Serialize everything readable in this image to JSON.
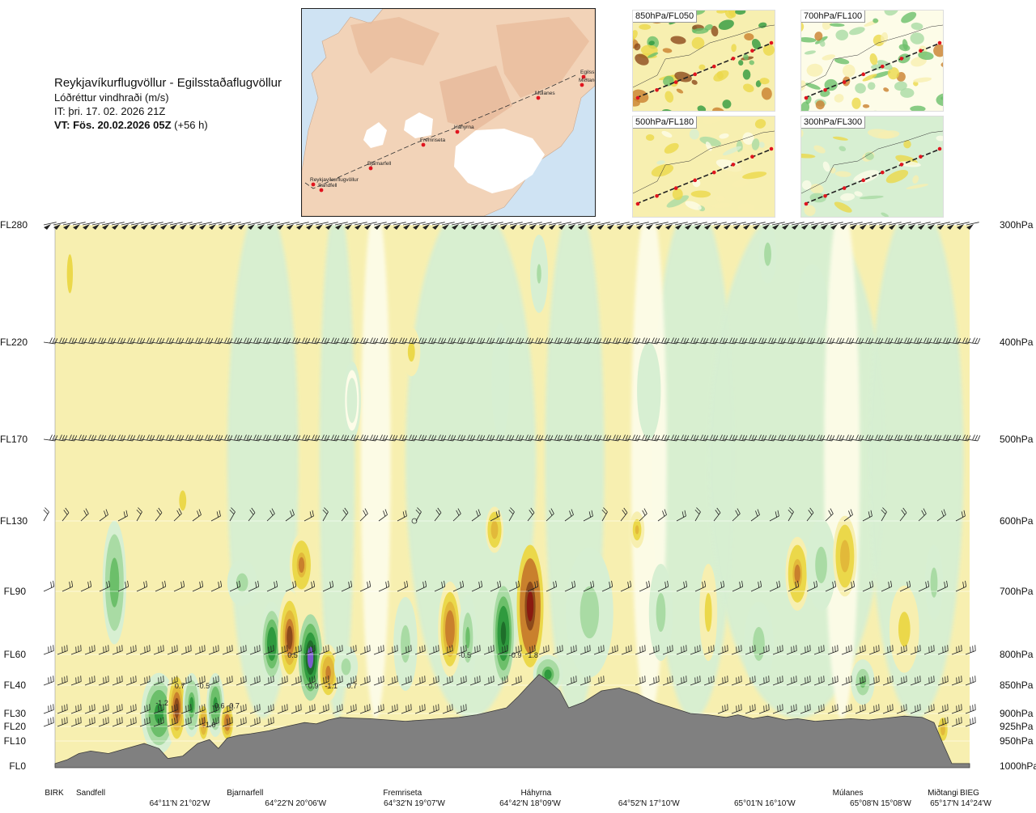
{
  "header": {
    "route_title": "Reykjavíkurflugvöllur - Egilsstaðaflugvöllur",
    "parameter": "Lóðréttur vindhraði (m/s)",
    "issue_time": "IT: þri. 17. 02. 2026 21Z",
    "valid_time_bold": "VT: Fös. 20.02.2026 05Z",
    "valid_time_offset": "(+56 h)"
  },
  "route_map": {
    "waypoints": [
      {
        "name": "Reykjavíkurflugvöllur"
      },
      {
        "name": "Sandfell"
      },
      {
        "name": "Bjarnarfell"
      },
      {
        "name": "Fremriseta"
      },
      {
        "name": "Háhyrna"
      },
      {
        "name": "Múlanes"
      },
      {
        "name": "Egilss"
      },
      {
        "name": "Miðtangi"
      }
    ],
    "colors": {
      "sea": "#cfe3f3",
      "land": "#f2d3b8",
      "glacier": "#ffffff",
      "route": "#333333",
      "waypoint": "#e0141e"
    }
  },
  "level_maps": [
    {
      "label": "850hPa/FL050"
    },
    {
      "label": "700hPa/FL100"
    },
    {
      "label": "500hPa/FL180"
    },
    {
      "label": "300hPa/FL300"
    }
  ],
  "chart_data": {
    "type": "heatmap",
    "title": "Lóðréttur vindhraði (m/s)",
    "x_axis": {
      "waypoints": [
        {
          "name": "BIRK",
          "km": 0
        },
        {
          "name": "Sandfell",
          "km": 12
        },
        {
          "name": "Bjarnarfell",
          "km": 64
        },
        {
          "name": "Fremriseta",
          "km": 117
        },
        {
          "name": "Háhyrna",
          "km": 162
        },
        {
          "name": "Múlanes",
          "km": 267
        },
        {
          "name": "Miðtangi",
          "km": 299
        },
        {
          "name": "BIEG",
          "km": 308
        }
      ],
      "coordinates": [
        {
          "label": "64°11'N 21°02'W",
          "km": 42
        },
        {
          "label": "64°22'N 20°06'W",
          "km": 81
        },
        {
          "label": "64°32'N 19°07'W",
          "km": 121
        },
        {
          "label": "64°42'N 18°09'W",
          "km": 160
        },
        {
          "label": "64°52'N 17°10'W",
          "km": 200
        },
        {
          "label": "65°01'N 16°10'W",
          "km": 239
        },
        {
          "label": "65°08'N 15°08'W",
          "km": 278
        },
        {
          "label": "65°17'N 14°24'W",
          "km": 305
        }
      ],
      "range": [
        0,
        308
      ]
    },
    "y_axis": {
      "levels": [
        {
          "fl": "FL0",
          "hpa": "1000hPa",
          "ft": 0
        },
        {
          "fl": "FL10",
          "hpa": "950hPa",
          "ft": 1000
        },
        {
          "fl": "FL20",
          "hpa": "925hPa",
          "ft": 2000
        },
        {
          "fl": "FL30",
          "hpa": "900hPa",
          "ft": 3000
        },
        {
          "fl": "FL40",
          "hpa": "850hPa",
          "ft": 4000
        },
        {
          "fl": "FL60",
          "hpa": "800hPa",
          "ft": 6000
        },
        {
          "fl": "FL90",
          "hpa": "700hPa",
          "ft": 9000
        },
        {
          "fl": "FL130",
          "hpa": "600hPa",
          "ft": 13000
        },
        {
          "fl": "FL170",
          "hpa": "500hPa",
          "ft": 17000
        },
        {
          "fl": "FL220",
          "hpa": "400hPa",
          "ft": 22000
        },
        {
          "fl": "FL280",
          "hpa": "300hPa",
          "ft": 28000
        }
      ]
    },
    "color_scale": [
      {
        "max": -1.2,
        "color": "#7b5ccd"
      },
      {
        "max": -0.9,
        "color": "#1e6e2a"
      },
      {
        "max": -0.6,
        "color": "#2f9a3e"
      },
      {
        "max": -0.4,
        "color": "#6cbf6a"
      },
      {
        "max": -0.2,
        "color": "#a9dba4"
      },
      {
        "max": -0.05,
        "color": "#d7efd2"
      },
      {
        "max": 0.05,
        "color": "#fdfce8"
      },
      {
        "max": 0.2,
        "color": "#f7efb0"
      },
      {
        "max": 0.4,
        "color": "#ebd84a"
      },
      {
        "max": 0.6,
        "color": "#e2b93a"
      },
      {
        "max": 0.9,
        "color": "#c9802d"
      },
      {
        "max": 1.2,
        "color": "#8c4a1b"
      },
      {
        "max": 99,
        "color": "#8a1a10"
      }
    ],
    "terrain_color": "#808080",
    "terrain_profile": [
      {
        "km": 0,
        "ft": 100
      },
      {
        "km": 4,
        "ft": 250
      },
      {
        "km": 8,
        "ft": 500
      },
      {
        "km": 12,
        "ft": 600
      },
      {
        "km": 18,
        "ft": 500
      },
      {
        "km": 24,
        "ft": 700
      },
      {
        "km": 30,
        "ft": 900
      },
      {
        "km": 35,
        "ft": 700
      },
      {
        "km": 38,
        "ft": 300
      },
      {
        "km": 43,
        "ft": 400
      },
      {
        "km": 48,
        "ft": 900
      },
      {
        "km": 52,
        "ft": 1100
      },
      {
        "km": 55,
        "ft": 700
      },
      {
        "km": 58,
        "ft": 1200
      },
      {
        "km": 62,
        "ft": 1400
      },
      {
        "km": 66,
        "ft": 1500
      },
      {
        "km": 72,
        "ft": 1700
      },
      {
        "km": 78,
        "ft": 2000
      },
      {
        "km": 84,
        "ft": 2300
      },
      {
        "km": 88,
        "ft": 2200
      },
      {
        "km": 92,
        "ft": 2500
      },
      {
        "km": 96,
        "ft": 2700
      },
      {
        "km": 100,
        "ft": 2650
      },
      {
        "km": 106,
        "ft": 2600
      },
      {
        "km": 112,
        "ft": 2500
      },
      {
        "km": 118,
        "ft": 2400
      },
      {
        "km": 124,
        "ft": 2500
      },
      {
        "km": 130,
        "ft": 2600
      },
      {
        "km": 136,
        "ft": 2700
      },
      {
        "km": 142,
        "ft": 2900
      },
      {
        "km": 148,
        "ft": 3100
      },
      {
        "km": 152,
        "ft": 3200
      },
      {
        "km": 156,
        "ft": 3600
      },
      {
        "km": 160,
        "ft": 4100
      },
      {
        "km": 163,
        "ft": 4700
      },
      {
        "km": 166,
        "ft": 4300
      },
      {
        "km": 170,
        "ft": 3800
      },
      {
        "km": 173,
        "ft": 3200
      },
      {
        "km": 178,
        "ft": 3400
      },
      {
        "km": 184,
        "ft": 3800
      },
      {
        "km": 190,
        "ft": 3900
      },
      {
        "km": 196,
        "ft": 3700
      },
      {
        "km": 202,
        "ft": 3400
      },
      {
        "km": 208,
        "ft": 3200
      },
      {
        "km": 214,
        "ft": 3000
      },
      {
        "km": 220,
        "ft": 2900
      },
      {
        "km": 226,
        "ft": 2700
      },
      {
        "km": 230,
        "ft": 2900
      },
      {
        "km": 235,
        "ft": 2600
      },
      {
        "km": 240,
        "ft": 2800
      },
      {
        "km": 246,
        "ft": 2500
      },
      {
        "km": 250,
        "ft": 2600
      },
      {
        "km": 256,
        "ft": 2400
      },
      {
        "km": 262,
        "ft": 2500
      },
      {
        "km": 268,
        "ft": 2600
      },
      {
        "km": 274,
        "ft": 2500
      },
      {
        "km": 280,
        "ft": 2650
      },
      {
        "km": 286,
        "ft": 2800
      },
      {
        "km": 292,
        "ft": 2700
      },
      {
        "km": 296,
        "ft": 2300
      },
      {
        "km": 299,
        "ft": 900
      },
      {
        "km": 302,
        "ft": 100
      },
      {
        "km": 308,
        "ft": 100
      }
    ],
    "features": [
      {
        "km": 20,
        "ft": 9500,
        "km_w": 4,
        "ft_h": 6500,
        "v": -0.5
      },
      {
        "km": 35,
        "ft": 2500,
        "km_w": 3.5,
        "ft_h": 2400,
        "v": -1.3
      },
      {
        "km": 35,
        "ft": 3000,
        "km_w": 6,
        "ft_h": 4500,
        "v": -0.7
      },
      {
        "km": 41,
        "ft": 3200,
        "km_w": 3.5,
        "ft_h": 4500,
        "v": 0.9
      },
      {
        "km": 46,
        "ft": 3300,
        "km_w": 3,
        "ft_h": 3500,
        "v": -0.6
      },
      {
        "km": 50,
        "ft": 2300,
        "km_w": 2,
        "ft_h": 2500,
        "v": 0.7
      },
      {
        "km": 54,
        "ft": 3300,
        "km_w": 3,
        "ft_h": 3500,
        "v": -0.7
      },
      {
        "km": 58,
        "ft": 2300,
        "km_w": 2.5,
        "ft_h": 2500,
        "v": 0.8
      },
      {
        "km": 43,
        "ft": 14000,
        "km_w": 3,
        "ft_h": 2500,
        "v": 0.3
      },
      {
        "km": 63,
        "ft": 9500,
        "km_w": 5,
        "ft_h": 2500,
        "v": -0.3
      },
      {
        "km": 73,
        "ft": 6500,
        "km_w": 4,
        "ft_h": 4500,
        "v": -0.8
      },
      {
        "km": 79,
        "ft": 6800,
        "km_w": 4,
        "ft_h": 5000,
        "v": 0.9
      },
      {
        "km": 86,
        "ft": 5800,
        "km_w": 4,
        "ft_h": 4500,
        "v": -1.3
      },
      {
        "km": 92,
        "ft": 4800,
        "km_w": 3.5,
        "ft_h": 3000,
        "v": 0.7
      },
      {
        "km": 98,
        "ft": 5200,
        "km_w": 4,
        "ft_h": 2500,
        "v": -0.3
      },
      {
        "km": 83,
        "ft": 10500,
        "km_w": 4,
        "ft_h": 3500,
        "v": 0.6
      },
      {
        "km": 118,
        "ft": 6500,
        "km_w": 4,
        "ft_h": 5000,
        "v": -0.25
      },
      {
        "km": 133,
        "ft": 7200,
        "km_w": 4,
        "ft_h": 5000,
        "v": 0.8
      },
      {
        "km": 139,
        "ft": 6800,
        "km_w": 3,
        "ft_h": 4500,
        "v": -0.4
      },
      {
        "km": 151,
        "ft": 7000,
        "km_w": 3.5,
        "ft_h": 5000,
        "v": -1.0
      },
      {
        "km": 148,
        "ft": 12500,
        "km_w": 3,
        "ft_h": 2500,
        "v": 0.5
      },
      {
        "km": 160,
        "ft": 8300,
        "km_w": 4.5,
        "ft_h": 6500,
        "v": 1.4
      },
      {
        "km": 166,
        "ft": 4700,
        "km_w": 5,
        "ft_h": 2200,
        "v": -0.6
      },
      {
        "km": 180,
        "ft": 8000,
        "km_w": 8,
        "ft_h": 7000,
        "v": -0.25
      },
      {
        "km": 196,
        "ft": 12500,
        "km_w": 2.5,
        "ft_h": 2000,
        "v": 0.4
      },
      {
        "km": 204,
        "ft": 8000,
        "km_w": 4,
        "ft_h": 5000,
        "v": -0.25
      },
      {
        "km": 220,
        "ft": 8000,
        "km_w": 3,
        "ft_h": 5000,
        "v": 0.3
      },
      {
        "km": 237,
        "ft": 6500,
        "km_w": 5,
        "ft_h": 4500,
        "v": -0.3
      },
      {
        "km": 250,
        "ft": 10000,
        "km_w": 4,
        "ft_h": 4000,
        "v": 0.6
      },
      {
        "km": 258,
        "ft": 10500,
        "km_w": 5,
        "ft_h": 5000,
        "v": -0.3
      },
      {
        "km": 266,
        "ft": 11000,
        "km_w": 4,
        "ft_h": 4500,
        "v": 0.5
      },
      {
        "km": 272,
        "ft": 4200,
        "km_w": 4,
        "ft_h": 2200,
        "v": -0.4
      },
      {
        "km": 286,
        "ft": 7200,
        "km_w": 5,
        "ft_h": 4500,
        "v": 0.3
      },
      {
        "km": 296,
        "ft": 9500,
        "km_w": 3,
        "ft_h": 4000,
        "v": -0.25
      },
      {
        "km": 299,
        "ft": 1800,
        "km_w": 2,
        "ft_h": 2000,
        "v": 0.5
      },
      {
        "km": 5,
        "ft": 25500,
        "km_w": 2.5,
        "ft_h": 5000,
        "v": 0.3
      },
      {
        "km": 120,
        "ft": 21500,
        "km_w": 3,
        "ft_h": 2500,
        "v": 0.3
      },
      {
        "km": 163,
        "ft": 25500,
        "km_w": 3,
        "ft_h": 4000,
        "v": -0.2
      },
      {
        "km": 240,
        "ft": 26500,
        "km_w": 3,
        "ft_h": 3000,
        "v": -0.25
      },
      {
        "km": 255,
        "ft": 24000,
        "km_w": 5,
        "ft_h": 4000,
        "v": -0.15
      },
      {
        "km": 200,
        "ft": 19500,
        "km_w": 4,
        "ft_h": 5000,
        "v": -0.12
      },
      {
        "km": 150,
        "ft": 20000,
        "km_w": 3,
        "ft_h": 6000,
        "v": -0.12
      },
      {
        "km": 100,
        "ft": 19000,
        "km_w": 3,
        "ft_h": 4000,
        "v": -0.1
      }
    ],
    "value_labels": [
      {
        "text": "-1.2",
        "km": 36,
        "ft": 3400
      },
      {
        "text": "0.7",
        "km": 42,
        "ft": 4000
      },
      {
        "text": "-0.5",
        "km": 50,
        "ft": 4000
      },
      {
        "text": "-0.6",
        "km": 55,
        "ft": 3300
      },
      {
        "text": "-0.7",
        "km": 60,
        "ft": 3300
      },
      {
        "text": "-1.0",
        "km": 52,
        "ft": 2200
      },
      {
        "text": "0.5",
        "km": 80,
        "ft": 6000
      },
      {
        "text": "0.9",
        "km": 87,
        "ft": 4000
      },
      {
        "text": "-1.1",
        "km": 93,
        "ft": 4000
      },
      {
        "text": "0.7",
        "km": 100,
        "ft": 4000
      },
      {
        "text": "-0.5",
        "km": 138,
        "ft": 6000
      },
      {
        "text": "-0.9",
        "km": 155,
        "ft": 6000
      },
      {
        "text": "1.8",
        "km": 161,
        "ft": 6000
      }
    ],
    "wind_levels_ft": [
      28000,
      22000,
      17000,
      13000,
      9000,
      6000,
      4000,
      3000,
      2000
    ],
    "grid": false
  }
}
